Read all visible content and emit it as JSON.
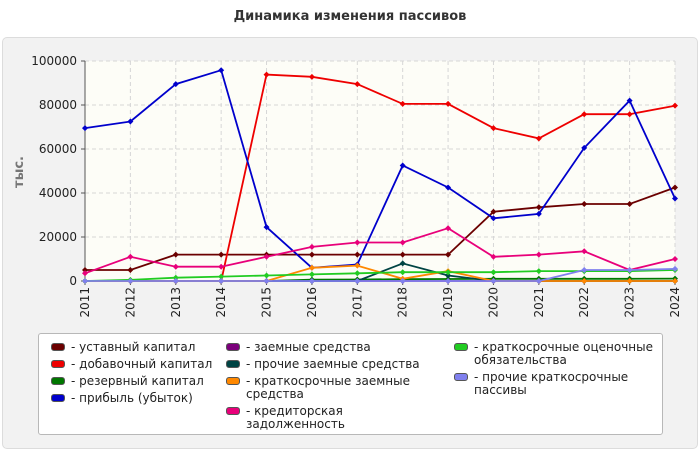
{
  "chart_data": {
    "type": "line",
    "title": "Динамика изменения пассивов",
    "ylabel": "тыс.",
    "xlabel": "",
    "ylim": [
      0,
      100000
    ],
    "yticks": [
      0,
      20000,
      40000,
      60000,
      80000,
      100000
    ],
    "x": [
      "2011",
      "2012",
      "2013",
      "2014",
      "2015",
      "2016",
      "2017",
      "2018",
      "2019",
      "2020",
      "2021",
      "2022",
      "2023",
      "2024"
    ],
    "grid": true,
    "legend_position": "bottom",
    "series": [
      {
        "name": "уставный капитал",
        "color": "#6b0000",
        "values": [
          5000,
          5000,
          12000,
          12000,
          12000,
          12000,
          12000,
          12000,
          12000,
          31500,
          33500,
          35000,
          35000,
          42500
        ]
      },
      {
        "name": "добавочный капитал",
        "color": "#ee0000",
        "values": [
          0,
          0,
          0,
          0,
          93800,
          92800,
          89500,
          80500,
          80500,
          69500,
          64800,
          75800,
          75800,
          79700
        ]
      },
      {
        "name": "резервный капитал",
        "color": "#007700",
        "values": [
          0,
          0,
          0,
          0,
          0,
          600,
          700,
          800,
          900,
          1000,
          1000,
          1000,
          1000,
          1100
        ]
      },
      {
        "name": "прибыль (убыток)",
        "color": "#0000cc",
        "values": [
          69500,
          72500,
          89500,
          95800,
          24500,
          6000,
          7500,
          52500,
          42500,
          28500,
          30500,
          60500,
          82000,
          37500
        ]
      },
      {
        "name": "заемные средства",
        "color": "#7b007b",
        "values": [
          0,
          0,
          0,
          0,
          0,
          0,
          0,
          0,
          0,
          0,
          0,
          0,
          0,
          0
        ]
      },
      {
        "name": "прочие заемные средства",
        "color": "#004444",
        "values": [
          0,
          0,
          0,
          0,
          0,
          0,
          0,
          8000,
          2500,
          0,
          0,
          0,
          0,
          0
        ]
      },
      {
        "name": "краткосрочные заемные средства",
        "color": "#ff8800",
        "values": [
          0,
          0,
          0,
          0,
          0,
          6000,
          7000,
          1000,
          4500,
          0,
          0,
          0,
          0,
          0
        ]
      },
      {
        "name": "кредиторская задолженность",
        "color": "#e8007a",
        "values": [
          3500,
          11000,
          6500,
          6500,
          11000,
          15500,
          17500,
          17500,
          24000,
          11000,
          12000,
          13500,
          5000,
          10000
        ]
      },
      {
        "name": "краткосрочные оценочные обязательства",
        "color": "#22cc22",
        "values": [
          0,
          500,
          1500,
          2000,
          2500,
          3000,
          3500,
          4000,
          4000,
          4000,
          4500,
          4500,
          4500,
          5000
        ]
      },
      {
        "name": "прочие краткосрочные пассивы",
        "color": "#8080ee",
        "values": [
          0,
          0,
          0,
          0,
          0,
          0,
          0,
          0,
          0,
          0,
          0,
          5000,
          5000,
          5500
        ]
      }
    ]
  }
}
